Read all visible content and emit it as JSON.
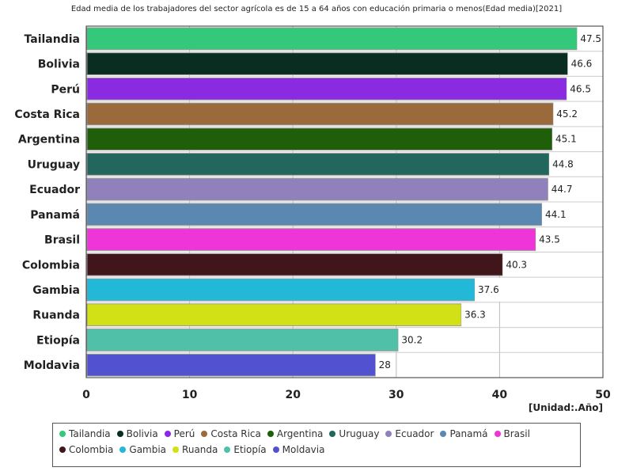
{
  "chart_data": {
    "type": "bar",
    "orientation": "horizontal",
    "title": "Edad media de los trabajadores del sector agrícola es de 15 a 64 años con educación primaria o menos(Edad media)[2021]",
    "unit": "[Unidad:.Año]",
    "categories": [
      "Tailandia",
      "Bolivia",
      "Perú",
      "Costa Rica",
      "Argentina",
      "Uruguay",
      "Ecuador",
      "Panamá",
      "Brasil",
      "Colombia",
      "Gambia",
      "Ruanda",
      "Etiopía",
      "Moldavia"
    ],
    "values": [
      47.5,
      46.6,
      46.5,
      45.2,
      45.1,
      44.8,
      44.7,
      44.1,
      43.5,
      40.3,
      37.6,
      36.3,
      30.2,
      28
    ],
    "value_labels": [
      "47.5",
      "46.6",
      "46.5",
      "45.2",
      "45.1",
      "44.8",
      "44.7",
      "44.1",
      "43.5",
      "40.3",
      "37.6",
      "36.3",
      "30.2",
      "28"
    ],
    "colors": [
      "#33c87a",
      "#0a2d22",
      "#8a2be2",
      "#9a6a3c",
      "#1f5f0a",
      "#22665e",
      "#9080bb",
      "#5a88b0",
      "#f035d8",
      "#40161a",
      "#22b8d8",
      "#d2e016",
      "#50c0a8",
      "#5252d0"
    ],
    "xlim": [
      0,
      50
    ],
    "xticks": [
      0,
      10,
      20,
      30,
      40,
      50
    ],
    "xtick_labels": [
      "0",
      "10",
      "20",
      "30",
      "40",
      "50"
    ],
    "grid": true,
    "legend_position": "bottom"
  }
}
